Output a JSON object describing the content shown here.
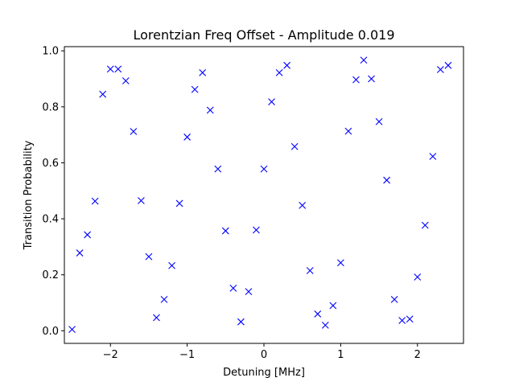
{
  "chart_data": {
    "type": "scatter",
    "title": "Lorentzian Freq Offset - Amplitude 0.019",
    "xlabel": "Detuning [MHz]",
    "ylabel": "Transition Probability",
    "xlim": [
      -2.6,
      2.6
    ],
    "ylim": [
      -0.045,
      1.015
    ],
    "xticks": [
      -2,
      -1,
      0,
      1,
      2
    ],
    "xtick_labels": [
      "−2",
      "−1",
      "0",
      "1",
      "2"
    ],
    "yticks": [
      0.0,
      0.2,
      0.4,
      0.6,
      0.8,
      1.0
    ],
    "ytick_labels": [
      "0.0",
      "0.2",
      "0.4",
      "0.6",
      "0.8",
      "1.0"
    ],
    "grid": false,
    "marker": "x",
    "color": "#0000ff",
    "series": [
      {
        "x": [
          -2.5,
          -2.4,
          -2.3,
          -2.2,
          -2.1,
          -2.0,
          -1.9,
          -1.8,
          -1.7,
          -1.6,
          -1.5,
          -1.4,
          -1.3,
          -1.2,
          -1.1,
          -1.0,
          -0.9,
          -0.8,
          -0.7,
          -0.6,
          -0.5,
          -0.4,
          -0.3,
          -0.2,
          -0.1,
          0.0,
          0.1,
          0.2,
          0.3,
          0.4,
          0.5,
          0.6,
          0.7,
          0.8,
          0.9,
          1.0,
          1.1,
          1.2,
          1.3,
          1.4,
          1.5,
          1.6,
          1.7,
          1.8,
          1.9,
          2.0,
          2.1,
          2.2,
          2.3,
          2.4
        ],
        "y": [
          0.005,
          0.278,
          0.343,
          0.463,
          0.845,
          0.935,
          0.935,
          0.893,
          0.712,
          0.465,
          0.265,
          0.047,
          0.112,
          0.233,
          0.455,
          0.692,
          0.862,
          0.922,
          0.788,
          0.578,
          0.357,
          0.152,
          0.032,
          0.14,
          0.36,
          0.578,
          0.818,
          0.922,
          0.948,
          0.658,
          0.448,
          0.215,
          0.06,
          0.02,
          0.09,
          0.243,
          0.713,
          0.897,
          0.967,
          0.9,
          0.747,
          0.538,
          0.112,
          0.037,
          0.042,
          0.192,
          0.377,
          0.623,
          0.933,
          0.948
        ]
      }
    ]
  }
}
